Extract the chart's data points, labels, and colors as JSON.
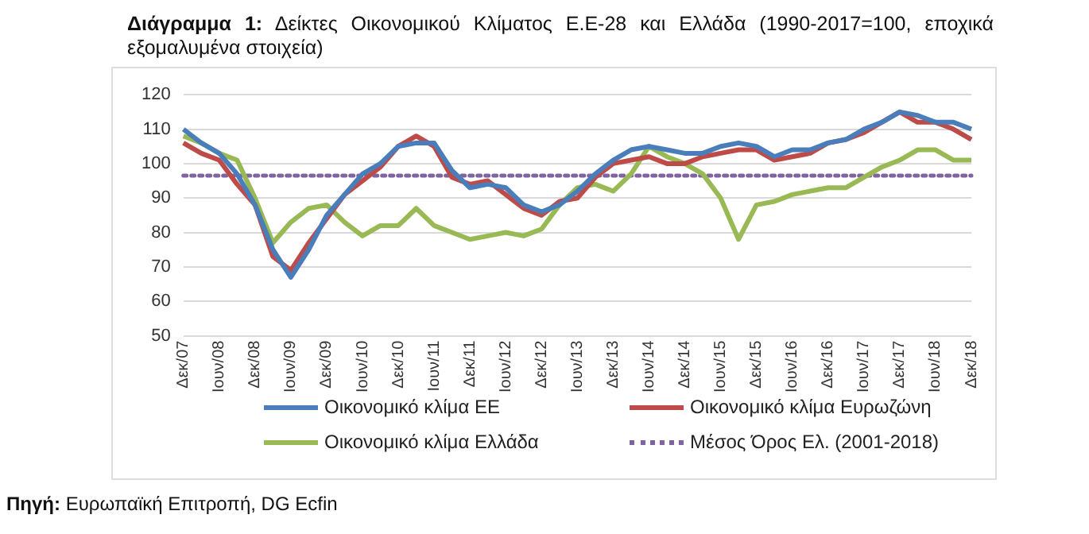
{
  "chart_data": {
    "type": "line",
    "title": "Διάγραμμα 1: Δείκτες Οικονομικού Κλίματος Ε.Ε-28 και Ελλάδα (1990-2017=100, εποχικά εξομαλυμένα στοιχεία)",
    "categories": [
      "Δεκ/07",
      null,
      "Ιουν/08",
      null,
      "Δεκ/08",
      null,
      "Ιουν/09",
      null,
      "Δεκ/09",
      null,
      "Ιουν/10",
      null,
      "Δεκ/10",
      null,
      "Ιουν/11",
      null,
      "Δεκ/11",
      null,
      "Ιουν/12",
      null,
      "Δεκ/12",
      null,
      "Ιουν/13",
      null,
      "Δεκ/13",
      null,
      "Ιουν/14",
      null,
      "Δεκ/14",
      null,
      "Ιουν/15",
      null,
      "Δεκ/15",
      null,
      "Ιουν/16",
      null,
      "Δεκ/16",
      null,
      "Ιουν/17",
      null,
      "Δεκ/17",
      null,
      "Ιουν/18",
      null,
      "Δεκ/18"
    ],
    "series": [
      {
        "name": "Οικονομικό κλίμα ΕΕ",
        "color": "#4a7ebb",
        "values": [
          110,
          106,
          103,
          97,
          88,
          75,
          67,
          75,
          85,
          91,
          97,
          100,
          105,
          106,
          106,
          98,
          93,
          94,
          93,
          88,
          86,
          88,
          92,
          97,
          101,
          104,
          105,
          104,
          103,
          103,
          105,
          106,
          105,
          102,
          104,
          104,
          106,
          107,
          110,
          112,
          115,
          114,
          112,
          112,
          110
        ]
      },
      {
        "name": "Οικονομικό κλίμα Ευρωζώνη",
        "color": "#be4b48",
        "values": [
          106,
          103,
          101,
          94,
          88,
          73,
          69,
          77,
          84,
          91,
          95,
          99,
          105,
          108,
          105,
          96,
          94,
          95,
          91,
          87,
          85,
          89,
          90,
          96,
          100,
          101,
          102,
          100,
          100,
          102,
          103,
          104,
          104,
          101,
          102,
          103,
          106,
          107,
          109,
          112,
          115,
          112,
          112,
          110,
          107
        ]
      },
      {
        "name": "Οικονομικό κλίμα Ελλάδα",
        "color": "#98b954",
        "values": [
          108,
          106,
          103,
          101,
          90,
          77,
          83,
          87,
          88,
          83,
          79,
          82,
          82,
          87,
          82,
          80,
          78,
          79,
          80,
          79,
          81,
          88,
          93,
          94,
          92,
          97,
          105,
          102,
          100,
          97,
          90,
          78,
          88,
          89,
          91,
          92,
          93,
          93,
          96,
          99,
          101,
          104,
          104,
          101,
          101
        ]
      }
    ],
    "ref_lines": [
      {
        "axis": "y",
        "value": 96.5,
        "label": "Μέσος Όρος Ελ. (2001-2018)",
        "color": "#8064a2",
        "line_style": "dotted"
      }
    ],
    "ylim": [
      50,
      120
    ],
    "yticks": [
      50,
      60,
      70,
      80,
      90,
      100,
      110,
      120
    ],
    "grid": "y",
    "legend": "bottom",
    "marker": "none",
    "line_style": "solid",
    "annotations": [
      "Πηγή: Ευρωπαϊκή Επιτροπή, DG Ecfin"
    ]
  }
}
